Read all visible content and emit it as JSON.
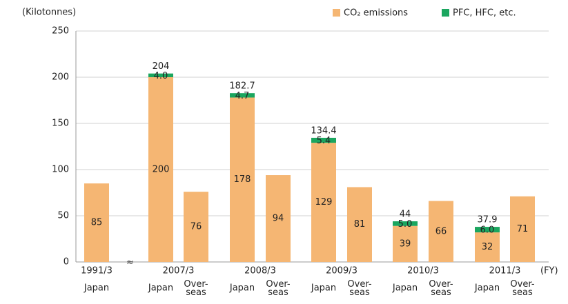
{
  "chart_data": {
    "type": "stacked-bar",
    "y_axis_label": "(Kilotonnes)",
    "x_axis_label": "(FY)",
    "categories": [
      "Japan",
      "Japan",
      "Over-\nseas",
      "Japan",
      "Over-\nseas",
      "Japan",
      "Over-\nseas",
      "Japan",
      "Over-\nseas",
      "Japan",
      "Over-\nseas"
    ],
    "group_labels": [
      "1991/3",
      "2007/3",
      null,
      "2008/3",
      null,
      "2009/3",
      null,
      "2010/3",
      null,
      "2011/3",
      null
    ],
    "series": [
      {
        "name": "CO₂ emissions",
        "color": "#f5b673",
        "values": [
          85,
          200,
          76,
          178,
          94,
          129,
          81,
          39,
          66,
          32,
          71
        ]
      },
      {
        "name": "PFC, HFC, etc.",
        "color": "#1ba65f",
        "values": [
          null,
          4.0,
          null,
          4.7,
          null,
          5.4,
          null,
          5.0,
          null,
          6.0,
          null
        ],
        "value_labels": [
          null,
          "4.0",
          null,
          "4.7",
          null,
          "5.4",
          null,
          "5.0",
          null,
          "6.0",
          null
        ]
      }
    ],
    "totals": [
      null,
      204,
      null,
      182.7,
      null,
      134.4,
      null,
      44,
      null,
      37.9,
      null
    ],
    "ylim": [
      0,
      250
    ],
    "yticks": [
      0,
      50,
      100,
      150,
      200,
      250
    ],
    "grid": true,
    "legend": "top-right"
  }
}
